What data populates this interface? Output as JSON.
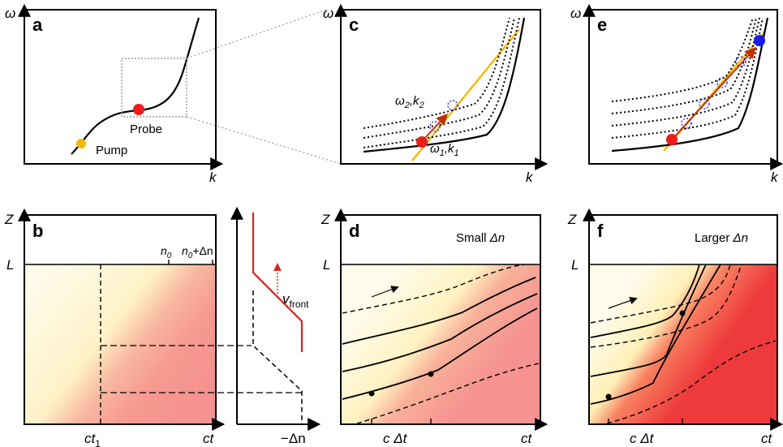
{
  "panels": {
    "a": {
      "letter": "a",
      "y_axis": "ω",
      "x_axis": "k",
      "pump_label": "Pump",
      "probe_label": "Probe"
    },
    "b": {
      "letter": "b",
      "y_axis": "Z",
      "L": "L",
      "n0": "n",
      "n0_sub": "0",
      "n0dn": "n",
      "n0dn_sub": "0",
      "n0dn_suffix": "+Δn",
      "x_tick": "ct",
      "x_tick_sub": "1",
      "x_axis": "ct"
    },
    "b_side": {
      "x_axis": "−Δn",
      "vfront": "v",
      "vfront_sub": "front"
    },
    "c": {
      "letter": "c",
      "y_axis": "ω",
      "x_axis": "k",
      "state2": "ω",
      "state2_sub1": "2",
      "state2_mid": ",k",
      "state2_sub2": "2",
      "state1": "ω",
      "state1_sub1": "1",
      "state1_mid": ",k",
      "state1_sub2": "1"
    },
    "d": {
      "letter": "d",
      "y_axis": "Z",
      "L": "L",
      "title_prefix": "Small ",
      "title_var": "Δn",
      "x_tick": "c Δt",
      "x_axis": "ct"
    },
    "e": {
      "letter": "e",
      "y_axis": "ω",
      "x_axis": "k"
    },
    "f": {
      "letter": "f",
      "y_axis": "Z",
      "L": "L",
      "title_prefix": "Larger ",
      "title_var": "Δn",
      "x_tick": "c Δt",
      "x_axis": "ct"
    }
  },
  "colors": {
    "pump": "#f5b800",
    "probe": "#ee1c1c",
    "final_state": "#1a1aee",
    "front": "#e8b020",
    "transition_arrow": "#c03000",
    "front_velocity": "#e02020"
  }
}
